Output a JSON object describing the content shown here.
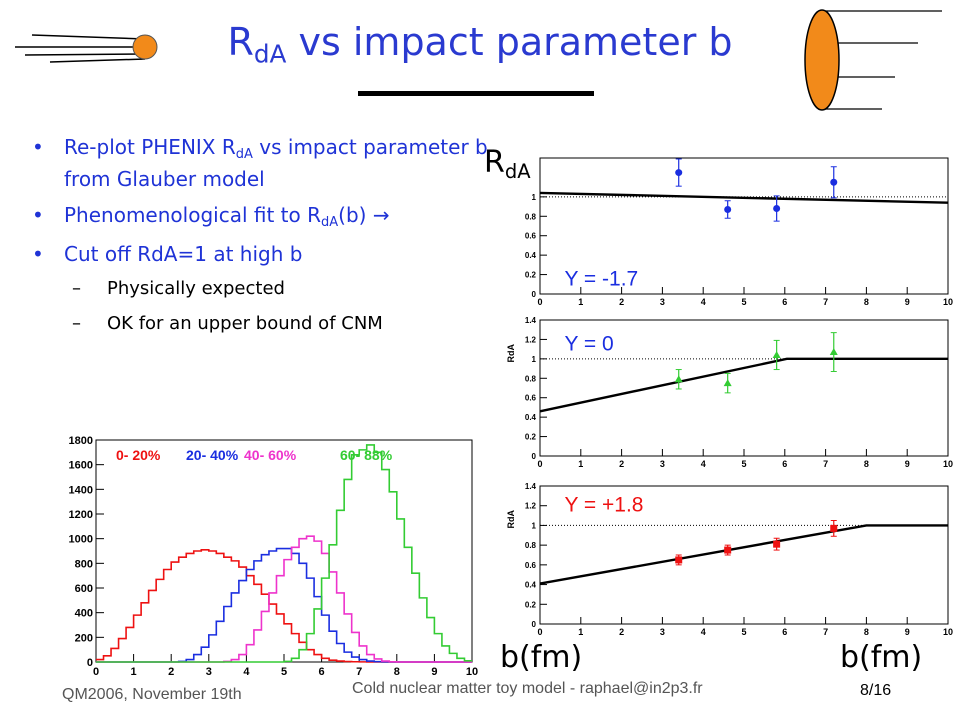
{
  "header": {
    "title_main": "R",
    "title_sub": "dA",
    "title_rest": " vs impact parameter b"
  },
  "bullets": [
    {
      "pre": "Re-plot PHENIX R",
      "sub": "dA",
      "post": " vs impact parameter b from Glauber model"
    },
    {
      "pre": "Phenomenological fit to R",
      "sub": "dA",
      "post": "(b) →"
    },
    {
      "pre": "Cut off RdA=1 at high b",
      "sub": "",
      "post": ""
    }
  ],
  "subbullets": [
    "Physically expected",
    "OK for an upper bound of CNM"
  ],
  "footer": {
    "left": "QM2006, November 19th",
    "center": "Cold nuclear matter toy model - raphael@in2p3.fr",
    "page": "8/16"
  },
  "axis_label_big": "R",
  "axis_label_big_sub": "dA",
  "xlabel_big_left": "b(fm)",
  "xlabel_big_right": "b(fm)",
  "colors": {
    "title": "#2a3ad0",
    "bullets": "#1f33d6",
    "blue": "#1a2ee0",
    "green": "#33cc33",
    "red": "#ee1111",
    "magenta": "#ee33cc"
  },
  "chart_data": [
    {
      "type": "line",
      "panel": "histogram",
      "title": "",
      "xlim": [
        0,
        10
      ],
      "ylim": [
        0,
        1800
      ],
      "xticks": [
        0,
        1,
        2,
        3,
        4,
        5,
        6,
        7,
        8,
        9,
        10
      ],
      "yticks": [
        0,
        200,
        400,
        600,
        800,
        1000,
        1200,
        1400,
        1600,
        1800
      ],
      "legend": [
        {
          "label": "0- 20%",
          "color": "#ee1111"
        },
        {
          "label": "20- 40%",
          "color": "#1a2ee0"
        },
        {
          "label": "40- 60%",
          "color": "#ee33cc"
        },
        {
          "label": "60- 88%",
          "color": "#33cc33"
        }
      ],
      "x": [
        0.0,
        0.2,
        0.4,
        0.6,
        0.8,
        1.0,
        1.2,
        1.4,
        1.6,
        1.8,
        2.0,
        2.2,
        2.4,
        2.6,
        2.8,
        3.0,
        3.2,
        3.4,
        3.6,
        3.8,
        4.0,
        4.2,
        4.4,
        4.6,
        4.8,
        5.0,
        5.2,
        5.4,
        5.6,
        5.8,
        6.0,
        6.2,
        6.4,
        6.6,
        6.8,
        7.0,
        7.2,
        7.4,
        7.6,
        7.8,
        8.0,
        8.2,
        8.4,
        8.6,
        8.8,
        9.0,
        9.2,
        9.4,
        9.6,
        9.8
      ],
      "series": [
        {
          "name": "0- 20%",
          "color": "#ee1111",
          "values": [
            20,
            50,
            110,
            190,
            280,
            380,
            480,
            580,
            670,
            750,
            810,
            850,
            880,
            900,
            910,
            900,
            880,
            850,
            820,
            770,
            700,
            630,
            550,
            470,
            390,
            310,
            230,
            160,
            100,
            60,
            30,
            15,
            8,
            4,
            2,
            1,
            0,
            0,
            0,
            0,
            0,
            0,
            0,
            0,
            0,
            0,
            0,
            0,
            0,
            0
          ]
        },
        {
          "name": "20- 40%",
          "color": "#1a2ee0",
          "values": [
            0,
            0,
            0,
            0,
            0,
            0,
            0,
            0,
            0,
            0,
            0,
            5,
            20,
            60,
            120,
            220,
            330,
            450,
            560,
            660,
            750,
            820,
            870,
            900,
            920,
            920,
            880,
            800,
            680,
            530,
            380,
            250,
            150,
            80,
            40,
            20,
            8,
            3,
            1,
            0,
            0,
            0,
            0,
            0,
            0,
            0,
            0,
            0,
            0,
            0
          ]
        },
        {
          "name": "40- 60%",
          "color": "#ee33cc",
          "values": [
            0,
            0,
            0,
            0,
            0,
            0,
            0,
            0,
            0,
            0,
            0,
            0,
            0,
            0,
            0,
            0,
            0,
            5,
            20,
            60,
            140,
            260,
            410,
            560,
            700,
            830,
            930,
            1000,
            1020,
            980,
            880,
            730,
            560,
            390,
            240,
            130,
            60,
            25,
            8,
            2,
            0,
            0,
            0,
            0,
            0,
            0,
            0,
            0,
            0,
            0
          ]
        },
        {
          "name": "60- 88%",
          "color": "#33cc33",
          "values": [
            0,
            0,
            0,
            0,
            0,
            0,
            0,
            0,
            0,
            0,
            0,
            0,
            0,
            0,
            0,
            0,
            0,
            0,
            0,
            0,
            0,
            0,
            0,
            0,
            0,
            5,
            30,
            100,
            230,
            430,
            680,
            950,
            1230,
            1480,
            1680,
            1720,
            1760,
            1700,
            1560,
            1380,
            1160,
            930,
            720,
            520,
            360,
            230,
            130,
            70,
            30,
            10
          ]
        }
      ]
    },
    {
      "type": "scatter",
      "panel": "rdA-y-minus",
      "label": "Y = -1.7",
      "xlim": [
        0,
        10
      ],
      "ylim": [
        0,
        1.4
      ],
      "yticks": [
        0,
        0.2,
        0.4,
        0.6,
        0.8,
        1
      ],
      "xticks": [
        0,
        1,
        2,
        3,
        4,
        5,
        6,
        7,
        8,
        9,
        10
      ],
      "color": "#1a2ee0",
      "marker": "circle",
      "points": [
        {
          "x": 3.4,
          "y": 1.25,
          "err": 0.14
        },
        {
          "x": 4.6,
          "y": 0.87,
          "err": 0.09
        },
        {
          "x": 5.8,
          "y": 0.88,
          "err": 0.13
        },
        {
          "x": 7.2,
          "y": 1.15,
          "err": 0.16
        }
      ],
      "fit": [
        [
          0,
          1.04
        ],
        [
          10,
          0.94
        ]
      ],
      "ref": 1.0
    },
    {
      "type": "scatter",
      "panel": "rdA-y-zero",
      "label": "Y = 0",
      "ylabel": "RdA",
      "xlim": [
        0,
        10
      ],
      "ylim": [
        0,
        1.4
      ],
      "yticks": [
        0,
        0.2,
        0.4,
        0.6,
        0.8,
        1,
        1.2,
        1.4
      ],
      "xticks": [
        0,
        1,
        2,
        3,
        4,
        5,
        6,
        7,
        8,
        9,
        10
      ],
      "color": "#33cc33",
      "marker": "triangle",
      "points": [
        {
          "x": 3.4,
          "y": 0.79,
          "err": 0.1
        },
        {
          "x": 4.6,
          "y": 0.75,
          "err": 0.1
        },
        {
          "x": 5.8,
          "y": 1.04,
          "err": 0.15
        },
        {
          "x": 7.2,
          "y": 1.07,
          "err": 0.2
        }
      ],
      "fit": [
        [
          0,
          0.46
        ],
        [
          6.05,
          1.0
        ],
        [
          10,
          1.0
        ]
      ],
      "ref": 1.0
    },
    {
      "type": "scatter",
      "panel": "rdA-y-plus",
      "label": "Y = +1.8",
      "ylabel": "RdA",
      "xlim": [
        0,
        10
      ],
      "ylim": [
        0,
        1.4
      ],
      "yticks": [
        0,
        0.2,
        0.4,
        0.6,
        0.8,
        1,
        1.2,
        1.4
      ],
      "xticks": [
        0,
        1,
        2,
        3,
        4,
        5,
        6,
        7,
        8,
        9,
        10
      ],
      "color": "#ee1111",
      "marker": "square",
      "points": [
        {
          "x": 3.4,
          "y": 0.65,
          "err": 0.05
        },
        {
          "x": 4.6,
          "y": 0.75,
          "err": 0.05
        },
        {
          "x": 5.8,
          "y": 0.81,
          "err": 0.06
        },
        {
          "x": 7.2,
          "y": 0.97,
          "err": 0.08
        }
      ],
      "fit": [
        [
          0,
          0.41
        ],
        [
          8.0,
          1.0
        ],
        [
          10,
          1.0
        ]
      ],
      "ref": 1.0
    }
  ]
}
